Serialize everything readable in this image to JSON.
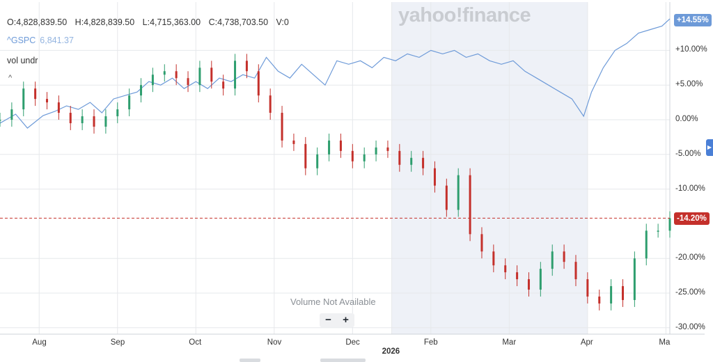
{
  "header": {
    "ohlc": {
      "open": "O:4,828,839.50",
      "high": "H:4,828,839.50",
      "low": "L:4,715,363.00",
      "close": "C:4,738,703.50",
      "volume": "V:0"
    },
    "comparison_symbol": "^GSPC",
    "comparison_value": "6,841.37",
    "volume_indicator": "vol undr",
    "collapse_glyph": "^"
  },
  "watermark": "yahoo!finance",
  "volume_message": "Volume Not Available",
  "zoom": {
    "minus": "−",
    "plus": "+"
  },
  "colors": {
    "up": "#2e9e6e",
    "down": "#c4302b",
    "comparison_line": "#6d9ad8",
    "shade": "#eef1f7",
    "grid": "#e6e8eb",
    "last_price_line": "#c4302b"
  },
  "chart_data": {
    "type": "line",
    "y_axis": {
      "ticks": [
        "+10.00%",
        "+5.00%",
        "0.00%",
        "-5.00%",
        "-10.00%",
        "-20.00%",
        "-25.00%",
        "-30.00%"
      ],
      "tick_values": [
        10,
        5,
        0,
        -5,
        -10,
        -20,
        -25,
        -30
      ],
      "range": [
        -30,
        14.55
      ],
      "unit": "% change"
    },
    "x_axis": {
      "month_labels": [
        "Aug",
        "Sep",
        "Oct",
        "Nov",
        "Dec",
        "2026",
        "Feb",
        "Mar",
        "Apr",
        "Ma"
      ],
      "month_positions": [
        0.5,
        1.5,
        2.5,
        3.5,
        4.5,
        5,
        5.5,
        6.5,
        7.5,
        8.5
      ],
      "major_labels": [
        "2026"
      ],
      "range": [
        0,
        8.55
      ]
    },
    "shaded_region": [
      5,
      7.5
    ],
    "last_values": {
      "comparison": "+14.55%",
      "main": "-14.20%"
    },
    "series": [
      {
        "name": "^GSPC",
        "style": "line",
        "x": [
          0.0,
          0.2,
          0.35,
          0.55,
          0.7,
          0.85,
          1.0,
          1.15,
          1.3,
          1.45,
          1.6,
          1.75,
          1.9,
          2.05,
          2.2,
          2.35,
          2.5,
          2.65,
          2.8,
          2.95,
          3.1,
          3.25,
          3.4,
          3.55,
          3.7,
          3.85,
          4.0,
          4.15,
          4.3,
          4.45,
          4.6,
          4.75,
          4.9,
          5.05,
          5.2,
          5.35,
          5.5,
          5.65,
          5.8,
          5.95,
          6.1,
          6.25,
          6.4,
          6.55,
          6.7,
          6.85,
          7.0,
          7.15,
          7.3,
          7.45,
          7.55,
          7.7,
          7.85,
          8.0,
          8.15,
          8.3,
          8.45,
          8.55
        ],
        "values": [
          -0.5,
          0.8,
          -1.2,
          0.6,
          1.2,
          2.0,
          1.5,
          2.5,
          1.0,
          3.0,
          3.5,
          4.0,
          5.5,
          5.0,
          6.0,
          4.5,
          5.5,
          4.5,
          6.0,
          5.5,
          6.5,
          6.0,
          9.0,
          7.0,
          6.0,
          8.0,
          6.5,
          5.0,
          8.5,
          8.0,
          8.5,
          7.5,
          9.0,
          8.5,
          9.5,
          9.0,
          10.0,
          9.5,
          10.0,
          9.0,
          9.5,
          8.5,
          8.0,
          8.5,
          7.0,
          6.0,
          5.0,
          4.0,
          3.0,
          0.5,
          4.0,
          7.5,
          10.0,
          11.0,
          12.5,
          13.0,
          13.5,
          14.55
        ]
      },
      {
        "name": "",
        "style": "candles",
        "x": [
          0.0,
          0.15,
          0.3,
          0.45,
          0.6,
          0.75,
          0.9,
          1.05,
          1.2,
          1.35,
          1.5,
          1.65,
          1.8,
          1.95,
          2.1,
          2.25,
          2.4,
          2.55,
          2.7,
          2.85,
          3.0,
          3.15,
          3.3,
          3.45,
          3.6,
          3.75,
          3.9,
          4.05,
          4.2,
          4.35,
          4.5,
          4.65,
          4.8,
          4.95,
          5.1,
          5.25,
          5.4,
          5.55,
          5.7,
          5.85,
          6.0,
          6.15,
          6.3,
          6.45,
          6.6,
          6.75,
          6.9,
          7.05,
          7.2,
          7.35,
          7.5,
          7.65,
          7.8,
          7.95,
          8.1,
          8.25,
          8.4,
          8.55
        ],
        "values": [
          0.0,
          1.5,
          4.5,
          3.0,
          2.5,
          1.0,
          -0.5,
          0.5,
          -1.0,
          0.5,
          1.5,
          3.5,
          5.0,
          6.5,
          7.0,
          6.0,
          5.0,
          7.5,
          5.5,
          4.5,
          8.5,
          7.0,
          3.5,
          1.0,
          -3.0,
          -3.5,
          -7.0,
          -5.0,
          -3.0,
          -4.5,
          -6.0,
          -5.0,
          -4.0,
          -4.5,
          -6.5,
          -5.5,
          -7.0,
          -9.5,
          -13.0,
          -8.0,
          -16.5,
          -19.0,
          -21.0,
          -22.0,
          -23.0,
          -24.5,
          -21.5,
          -19.0,
          -20.5,
          -23.0,
          -25.5,
          -26.5,
          -24.0,
          -26.0,
          -20.0,
          -16.0,
          -16.0,
          -14.2
        ]
      }
    ]
  },
  "bottom_stub": true
}
